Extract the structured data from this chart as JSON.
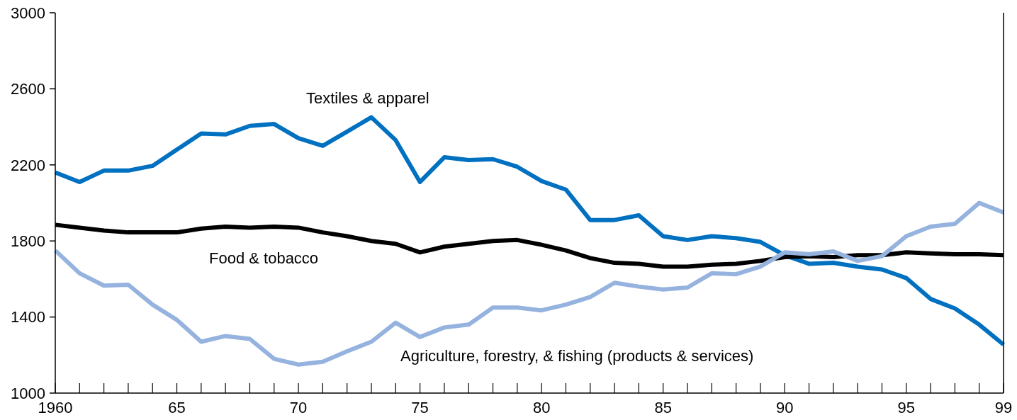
{
  "chart_data": {
    "type": "line",
    "xlim": [
      1960,
      1999
    ],
    "ylim": [
      1000,
      3000
    ],
    "yticks": [
      1000,
      1400,
      1800,
      2200,
      2600,
      3000
    ],
    "xticks": [
      1960,
      {
        "value": 1961,
        "label": null
      },
      {
        "value": 1962,
        "label": null
      },
      {
        "value": 1963,
        "label": null
      },
      {
        "value": 1964,
        "label": null
      },
      {
        "value": 1965,
        "label": "65"
      },
      {
        "value": 1966,
        "label": null
      },
      {
        "value": 1967,
        "label": null
      },
      {
        "value": 1968,
        "label": null
      },
      {
        "value": 1969,
        "label": null
      },
      {
        "value": 1970,
        "label": "70"
      },
      {
        "value": 1971,
        "label": null
      },
      {
        "value": 1972,
        "label": null
      },
      {
        "value": 1973,
        "label": null
      },
      {
        "value": 1974,
        "label": null
      },
      {
        "value": 1975,
        "label": "75"
      },
      {
        "value": 1976,
        "label": null
      },
      {
        "value": 1977,
        "label": null
      },
      {
        "value": 1978,
        "label": null
      },
      {
        "value": 1979,
        "label": null
      },
      {
        "value": 1980,
        "label": "80"
      },
      {
        "value": 1981,
        "label": null
      },
      {
        "value": 1982,
        "label": null
      },
      {
        "value": 1983,
        "label": null
      },
      {
        "value": 1984,
        "label": null
      },
      {
        "value": 1985,
        "label": "85"
      },
      {
        "value": 1986,
        "label": null
      },
      {
        "value": 1987,
        "label": null
      },
      {
        "value": 1988,
        "label": null
      },
      {
        "value": 1989,
        "label": null
      },
      {
        "value": 1990,
        "label": "90"
      },
      {
        "value": 1991,
        "label": null
      },
      {
        "value": 1992,
        "label": null
      },
      {
        "value": 1993,
        "label": null
      },
      {
        "value": 1994,
        "label": null
      },
      {
        "value": 1995,
        "label": "95"
      },
      {
        "value": 1996,
        "label": null
      },
      {
        "value": 1997,
        "label": null
      },
      {
        "value": 1998,
        "label": null
      },
      {
        "value": 1999,
        "label": "99"
      }
    ],
    "x": [
      1960,
      1961,
      1962,
      1963,
      1964,
      1965,
      1966,
      1967,
      1968,
      1969,
      1970,
      1971,
      1972,
      1973,
      1974,
      1975,
      1976,
      1977,
      1978,
      1979,
      1980,
      1981,
      1982,
      1983,
      1984,
      1985,
      1986,
      1987,
      1988,
      1989,
      1990,
      1991,
      1992,
      1993,
      1994,
      1995,
      1996,
      1997,
      1998,
      1999
    ],
    "grid": false,
    "marker": "none",
    "line_style": "solid",
    "series": [
      {
        "name": "Textiles & apparel",
        "color": "#0070c0",
        "values": [
          2160,
          2110,
          2170,
          2170,
          2195,
          2280,
          2365,
          2360,
          2405,
          2415,
          2340,
          2300,
          2375,
          2450,
          2330,
          2110,
          2240,
          2225,
          2230,
          2190,
          2115,
          2070,
          1910,
          1910,
          1935,
          1825,
          1805,
          1825,
          1815,
          1795,
          1725,
          1680,
          1685,
          1665,
          1650,
          1605,
          1495,
          1445,
          1360,
          1255
        ]
      },
      {
        "name": "Food & tobacco",
        "color": "#000000",
        "values": [
          1885,
          1870,
          1855,
          1845,
          1845,
          1845,
          1865,
          1875,
          1870,
          1875,
          1870,
          1845,
          1825,
          1800,
          1785,
          1740,
          1770,
          1785,
          1800,
          1805,
          1780,
          1750,
          1710,
          1685,
          1680,
          1665,
          1665,
          1675,
          1680,
          1695,
          1715,
          1720,
          1715,
          1725,
          1725,
          1740,
          1735,
          1730,
          1730,
          1725
        ]
      },
      {
        "name": "Agriculture, forestry, & fishing (products & services)",
        "color": "#95b3de",
        "values": [
          1750,
          1630,
          1565,
          1570,
          1465,
          1385,
          1270,
          1300,
          1285,
          1180,
          1150,
          1165,
          1220,
          1270,
          1370,
          1295,
          1345,
          1360,
          1450,
          1450,
          1435,
          1465,
          1505,
          1580,
          1560,
          1545,
          1555,
          1630,
          1625,
          1665,
          1740,
          1730,
          1745,
          1695,
          1720,
          1825,
          1875,
          1890,
          2000,
          1950
        ]
      }
    ]
  }
}
